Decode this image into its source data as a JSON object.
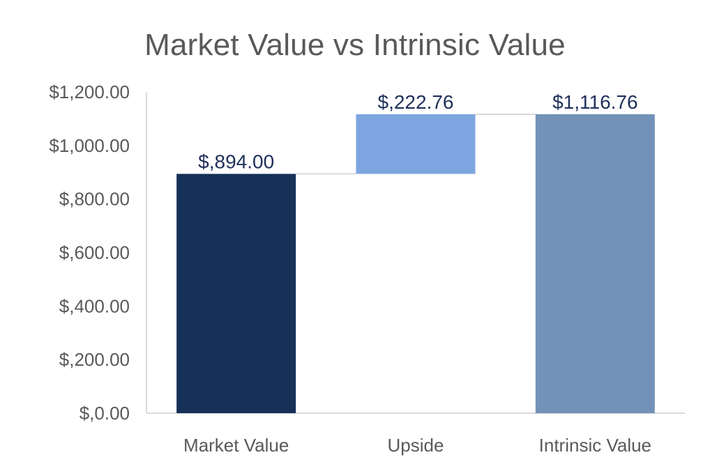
{
  "chart_data": {
    "type": "waterfall",
    "title": "Market Value vs Intrinsic Value",
    "categories": [
      "Market Value",
      "Upside",
      "Intrinsic Value"
    ],
    "bars": [
      {
        "category": "Market Value",
        "base": 0,
        "value": 894.0,
        "label": "$,894.00",
        "color": "#163057"
      },
      {
        "category": "Upside",
        "base": 894.0,
        "value": 222.76,
        "label": "$,222.76",
        "color": "#7da6e1"
      },
      {
        "category": "Intrinsic Value",
        "base": 0,
        "value": 1116.76,
        "label": "$1,116.76",
        "color": "#7392b8"
      }
    ],
    "ylim": [
      0,
      1200
    ],
    "yticks": [
      {
        "value": 0,
        "label": "$,0.00"
      },
      {
        "value": 200,
        "label": "$,200.00"
      },
      {
        "value": 400,
        "label": "$,400.00"
      },
      {
        "value": 600,
        "label": "$,600.00"
      },
      {
        "value": 800,
        "label": "$,800.00"
      },
      {
        "value": 1000,
        "label": "$1,000.00"
      },
      {
        "value": 1200,
        "label": "$1,200.00"
      }
    ],
    "grid": false,
    "connector_lines": true,
    "axis_color": "#d9d9d9"
  }
}
